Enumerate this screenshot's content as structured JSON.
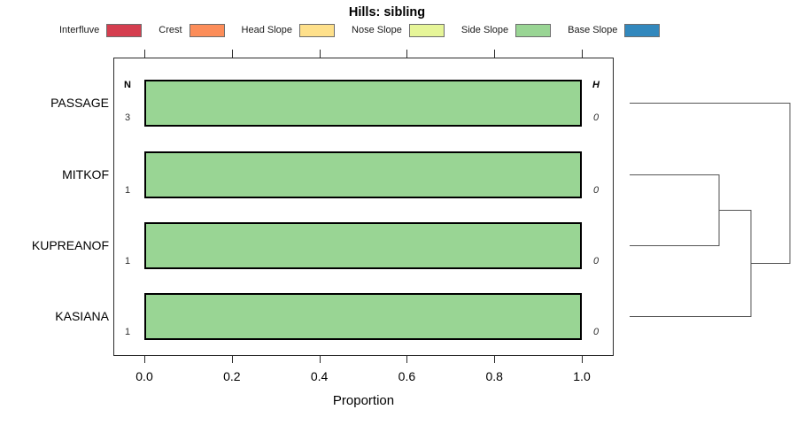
{
  "title": "Hills: sibling",
  "legend": {
    "items": [
      {
        "label": "Interfluve",
        "color": "#d53e4f"
      },
      {
        "label": "Crest",
        "color": "#fc8d59"
      },
      {
        "label": "Head Slope",
        "color": "#fee08b"
      },
      {
        "label": "Nose Slope",
        "color": "#e6f598"
      },
      {
        "label": "Side Slope",
        "color": "#99d594"
      },
      {
        "label": "Base Slope",
        "color": "#3288bd"
      }
    ]
  },
  "columns": {
    "n_header": "N",
    "h_header": "H"
  },
  "rows": [
    {
      "label": "PASSAGE",
      "n": "3",
      "h": "0",
      "proportion": 1.0,
      "fill": "#99d594",
      "category": "Side Slope"
    },
    {
      "label": "MITKOF",
      "n": "1",
      "h": "0",
      "proportion": 1.0,
      "fill": "#99d594",
      "category": "Side Slope"
    },
    {
      "label": "KUPREANOF",
      "n": "1",
      "h": "0",
      "proportion": 1.0,
      "fill": "#99d594",
      "category": "Side Slope"
    },
    {
      "label": "KASIANA",
      "n": "1",
      "h": "0",
      "proportion": 1.0,
      "fill": "#99d594",
      "category": "Side Slope"
    }
  ],
  "axis": {
    "label": "Proportion",
    "ticks": [
      {
        "label": "0.0",
        "value": 0.0
      },
      {
        "label": "0.2",
        "value": 0.2
      },
      {
        "label": "0.4",
        "value": 0.4
      },
      {
        "label": "0.6",
        "value": 0.6
      },
      {
        "label": "0.8",
        "value": 0.8
      },
      {
        "label": "1.0",
        "value": 1.0
      }
    ]
  },
  "chart_data": {
    "type": "bar",
    "orientation": "horizontal",
    "title": "Hills: sibling",
    "xlabel": "Proportion",
    "xlim": [
      0,
      1
    ],
    "x_ticks": [
      0.0,
      0.2,
      0.4,
      0.6,
      0.8,
      1.0
    ],
    "categories": [
      "PASSAGE",
      "MITKOF",
      "KUPREANOF",
      "KASIANA"
    ],
    "series": [
      {
        "name": "Interfluve",
        "color": "#d53e4f",
        "values": [
          0,
          0,
          0,
          0
        ]
      },
      {
        "name": "Crest",
        "color": "#fc8d59",
        "values": [
          0,
          0,
          0,
          0
        ]
      },
      {
        "name": "Head Slope",
        "color": "#fee08b",
        "values": [
          0,
          0,
          0,
          0
        ]
      },
      {
        "name": "Nose Slope",
        "color": "#e6f598",
        "values": [
          0,
          0,
          0,
          0
        ]
      },
      {
        "name": "Side Slope",
        "color": "#99d594",
        "values": [
          1.0,
          1.0,
          1.0,
          1.0
        ]
      },
      {
        "name": "Base Slope",
        "color": "#3288bd",
        "values": [
          0,
          0,
          0,
          0
        ]
      }
    ],
    "annotations": {
      "N_column_header": "N",
      "N_values": [
        3,
        1,
        1,
        1
      ],
      "H_column_header": "H",
      "H_values": [
        0,
        0,
        0,
        0
      ]
    },
    "legend_entries": [
      "Interfluve",
      "Crest",
      "Head Slope",
      "Nose Slope",
      "Side Slope",
      "Base Slope"
    ],
    "legend_position": "top",
    "grid": false,
    "dendrogram": {
      "side": "right",
      "newick": "(((MITKOF,KUPREANOF),KASIANA),PASSAGE)"
    }
  }
}
